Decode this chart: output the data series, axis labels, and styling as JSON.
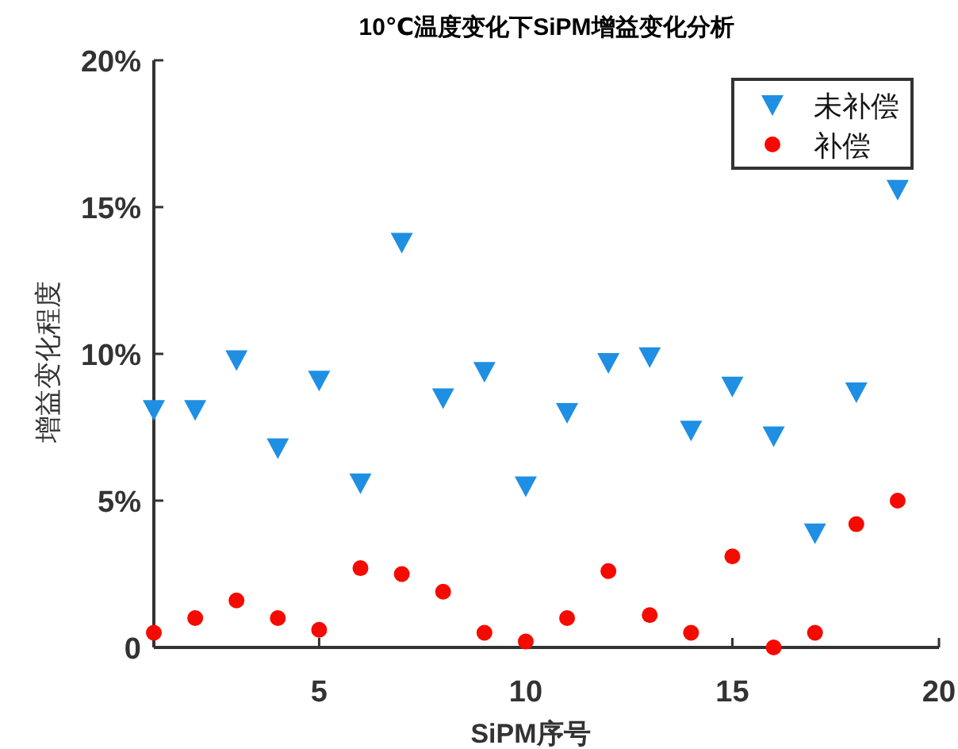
{
  "chart_data": {
    "type": "scatter",
    "title": "10℃温度变化下SiPM增益变化分析",
    "xlabel": "SiPM序号",
    "ylabel": "增益变化程度",
    "x": [
      1,
      2,
      3,
      4,
      5,
      6,
      7,
      8,
      9,
      10,
      11,
      12,
      13,
      14,
      15,
      16,
      17,
      18,
      19
    ],
    "series": [
      {
        "name": "未补偿",
        "color": "#1f8fe3",
        "marker": "triangle",
        "values": [
          8.1,
          8.1,
          9.8,
          6.8,
          9.1,
          5.6,
          13.8,
          8.5,
          9.4,
          5.5,
          8.0,
          9.7,
          9.9,
          7.4,
          8.9,
          7.2,
          3.9,
          8.7,
          15.6
        ]
      },
      {
        "name": "补偿",
        "color": "#f50a00",
        "marker": "circle",
        "values": [
          0.5,
          1.0,
          1.6,
          1.0,
          0.6,
          2.7,
          2.5,
          1.9,
          0.5,
          0.2,
          1.0,
          2.6,
          1.1,
          0.5,
          3.1,
          0.0,
          0.5,
          4.2,
          5.0
        ]
      }
    ],
    "xlim": [
      1,
      20
    ],
    "xticks": [
      5,
      10,
      15,
      20
    ],
    "ylim": [
      0,
      20
    ],
    "yticks": [
      {
        "value": 0,
        "label": "0"
      },
      {
        "value": 5,
        "label": "5%"
      },
      {
        "value": 10,
        "label": "10%"
      },
      {
        "value": 15,
        "label": "15%"
      },
      {
        "value": 20,
        "label": "20%"
      }
    ],
    "grid": false,
    "legend": "top right"
  }
}
